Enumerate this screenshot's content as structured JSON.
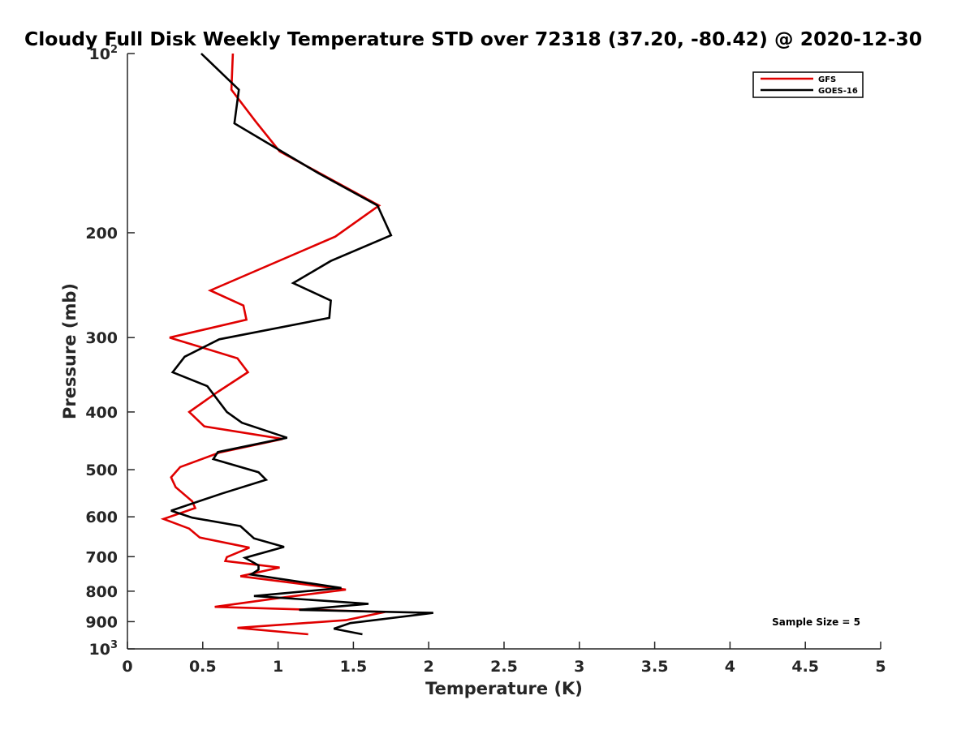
{
  "chart_data": {
    "type": "line",
    "title": "Cloudy Full Disk Weekly Temperature STD over 72318 (37.20, -80.42) @ 2020-12-30",
    "xlabel": "Temperature (K)",
    "ylabel": "Pressure (mb)",
    "xlim": [
      0,
      5
    ],
    "ylim": [
      100,
      1000
    ],
    "yscale": "log",
    "yreversed": true,
    "x_ticks": [
      0,
      0.5,
      1,
      1.5,
      2,
      2.5,
      3,
      3.5,
      4,
      4.5,
      5
    ],
    "x_tick_labels": [
      "0",
      "0.5",
      "1",
      "1.5",
      "2",
      "2.5",
      "3",
      "3.5",
      "4",
      "4.5",
      "5"
    ],
    "y_ticks": [
      100,
      200,
      300,
      400,
      500,
      600,
      700,
      800,
      900,
      1000
    ],
    "y_tick_labels": [
      {
        "base": "10",
        "exp": "2"
      },
      {
        "base": "200",
        "exp": ""
      },
      {
        "base": "300",
        "exp": ""
      },
      {
        "base": "400",
        "exp": ""
      },
      {
        "base": "500",
        "exp": ""
      },
      {
        "base": "600",
        "exp": ""
      },
      {
        "base": "700",
        "exp": ""
      },
      {
        "base": "800",
        "exp": ""
      },
      {
        "base": "900",
        "exp": ""
      },
      {
        "base": "10",
        "exp": "3"
      }
    ],
    "grid": false,
    "legend_position": "top-right",
    "annotation": "Sample Size = 5",
    "series": [
      {
        "name": "GFS",
        "color": "#e00000",
        "points": [
          [
            0.7,
            100
          ],
          [
            0.69,
            115
          ],
          [
            0.85,
            130
          ],
          [
            1.01,
            146
          ],
          [
            1.67,
            180
          ],
          [
            1.38,
            203
          ],
          [
            0.55,
            250
          ],
          [
            0.77,
            265
          ],
          [
            0.79,
            280
          ],
          [
            0.28,
            300
          ],
          [
            0.73,
            325
          ],
          [
            0.8,
            343
          ],
          [
            0.6,
            370
          ],
          [
            0.41,
            400
          ],
          [
            0.51,
            423
          ],
          [
            1.03,
            444
          ],
          [
            0.61,
            468
          ],
          [
            0.35,
            495
          ],
          [
            0.29,
            515
          ],
          [
            0.32,
            535
          ],
          [
            0.43,
            565
          ],
          [
            0.45,
            580
          ],
          [
            0.24,
            605
          ],
          [
            0.41,
            628
          ],
          [
            0.48,
            650
          ],
          [
            0.81,
            676
          ],
          [
            0.66,
            701
          ],
          [
            0.65,
            712
          ],
          [
            1.01,
            730
          ],
          [
            0.75,
            755
          ],
          [
            1.45,
            795
          ],
          [
            1.03,
            820
          ],
          [
            0.58,
            850
          ],
          [
            1.71,
            867
          ],
          [
            1.45,
            895
          ],
          [
            0.73,
            922
          ],
          [
            1.2,
            945
          ]
        ]
      },
      {
        "name": "GOES-16",
        "color": "#000000",
        "points": [
          [
            0.49,
            100
          ],
          [
            0.74,
            115
          ],
          [
            0.71,
            131
          ],
          [
            1.27,
            159
          ],
          [
            1.66,
            180
          ],
          [
            1.75,
            202
          ],
          [
            1.35,
            223
          ],
          [
            1.1,
            243
          ],
          [
            1.35,
            260
          ],
          [
            1.34,
            278
          ],
          [
            0.61,
            302
          ],
          [
            0.38,
            323
          ],
          [
            0.3,
            343
          ],
          [
            0.53,
            362
          ],
          [
            0.66,
            400
          ],
          [
            0.76,
            417
          ],
          [
            1.06,
            442
          ],
          [
            0.6,
            467
          ],
          [
            0.57,
            480
          ],
          [
            0.87,
            505
          ],
          [
            0.92,
            520
          ],
          [
            0.63,
            548
          ],
          [
            0.29,
            586
          ],
          [
            0.43,
            602
          ],
          [
            0.75,
            622
          ],
          [
            0.84,
            652
          ],
          [
            1.04,
            674
          ],
          [
            0.78,
            703
          ],
          [
            0.87,
            724
          ],
          [
            0.87,
            736
          ],
          [
            0.82,
            750
          ],
          [
            1.42,
            790
          ],
          [
            0.84,
            815
          ],
          [
            1.6,
            840
          ],
          [
            1.14,
            860
          ],
          [
            2.03,
            870
          ],
          [
            1.48,
            905
          ],
          [
            1.37,
            925
          ],
          [
            1.56,
            945
          ]
        ]
      }
    ]
  }
}
